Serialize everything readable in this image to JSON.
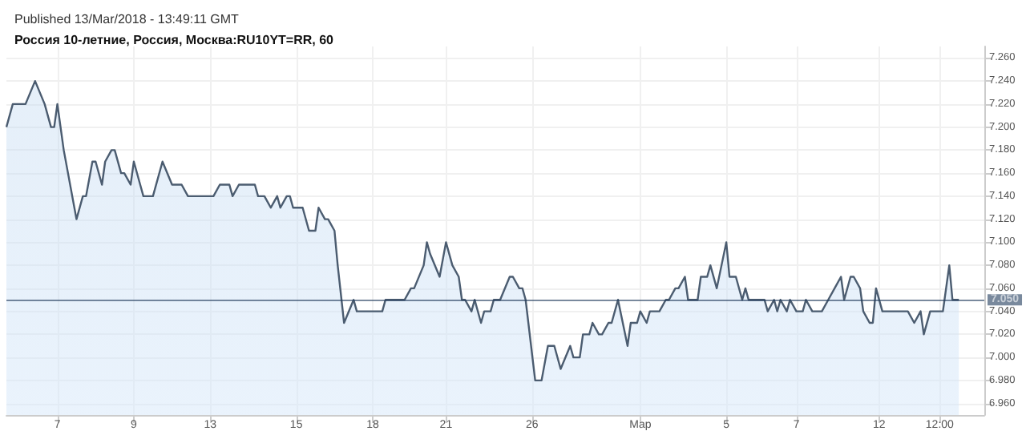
{
  "chart_data": {
    "type": "area",
    "title": "Россия 10-летние, Россия, Москва:RU10YT=RR, 60",
    "annotations": [
      "Published 13/Mar/2018 - 13:49:11 GMT"
    ],
    "categories": [
      null,
      null,
      null,
      null,
      null,
      null,
      null,
      null,
      null,
      null,
      null,
      null,
      null,
      null,
      null,
      null,
      "7",
      null,
      null,
      null,
      null,
      null,
      null,
      null,
      null,
      null,
      null,
      null,
      null,
      null,
      null,
      null,
      null,
      null,
      null,
      null,
      null,
      null,
      null,
      null,
      "9",
      null,
      null,
      null,
      null,
      null,
      null,
      null,
      null,
      null,
      null,
      null,
      null,
      null,
      null,
      null,
      null,
      null,
      null,
      null,
      null,
      null,
      null,
      null,
      "13",
      null,
      null,
      null,
      null,
      null,
      null,
      null,
      null,
      null,
      null,
      null,
      null,
      null,
      null,
      null,
      null,
      null,
      null,
      null,
      null,
      null,
      null,
      null,
      null,
      null,
      null,
      "15",
      null,
      null,
      null,
      null,
      null,
      null,
      null,
      null,
      null,
      null,
      null,
      null,
      null,
      null,
      null,
      null,
      null,
      null,
      null,
      null,
      null,
      null,
      null,
      "18",
      null,
      null,
      null,
      null,
      null,
      null,
      null,
      null,
      null,
      null,
      null,
      null,
      null,
      null,
      null,
      null,
      null,
      null,
      null,
      null,
      null,
      null,
      "21",
      null,
      null,
      null,
      null,
      null,
      null,
      null,
      null,
      null,
      null,
      null,
      null,
      null,
      null,
      null,
      null,
      null,
      null,
      null,
      null,
      null,
      null,
      null,
      null,
      null,
      null,
      "26",
      null,
      null,
      null,
      null,
      null,
      null,
      null,
      null,
      null,
      null,
      null,
      null,
      null,
      null,
      null,
      null,
      null,
      null,
      null,
      null,
      null,
      null,
      null,
      null,
      null,
      null,
      null,
      null,
      null,
      null,
      null,
      null,
      null,
      "Мар",
      null,
      null,
      null,
      null,
      null,
      null,
      null,
      null,
      null,
      null,
      null,
      null,
      null,
      null,
      null,
      null,
      null,
      null,
      null,
      null,
      null,
      null,
      null,
      null,
      null,
      null,
      "5",
      null,
      null,
      null,
      null,
      null,
      null,
      null,
      null,
      null,
      null,
      null,
      null,
      null,
      null,
      null,
      null,
      null,
      null,
      null,
      null,
      null,
      "7",
      null,
      null,
      null,
      null,
      null,
      null,
      null,
      null,
      null,
      null,
      null,
      null,
      null,
      null,
      null,
      null,
      null,
      null,
      null,
      null,
      null,
      null,
      null,
      null,
      null,
      "12",
      null,
      null,
      null,
      null,
      null,
      null,
      null,
      null,
      null,
      null,
      null,
      null,
      null,
      null,
      null,
      null,
      null,
      null,
      "12:00",
      null,
      null,
      null,
      null,
      null,
      null,
      null,
      null,
      null,
      null,
      null,
      null,
      null,
      null
    ],
    "series": [
      {
        "color": "#4b5c70",
        "values": [
          7.2,
          null,
          7.22,
          null,
          null,
          null,
          7.22,
          null,
          null,
          7.24,
          null,
          null,
          7.22,
          null,
          7.2,
          7.2,
          7.22,
          null,
          7.18,
          null,
          null,
          null,
          7.12,
          null,
          7.14,
          7.14,
          null,
          7.17,
          7.17,
          null,
          7.15,
          7.17,
          null,
          7.18,
          7.18,
          null,
          7.16,
          7.16,
          null,
          7.15,
          7.17,
          null,
          7.15,
          7.14,
          null,
          null,
          7.14,
          null,
          null,
          7.17,
          null,
          null,
          7.15,
          null,
          null,
          7.15,
          null,
          7.14,
          null,
          null,
          null,
          null,
          null,
          null,
          null,
          7.14,
          null,
          7.15,
          null,
          null,
          7.15,
          7.14,
          null,
          7.15,
          null,
          null,
          null,
          null,
          7.15,
          7.14,
          null,
          7.14,
          null,
          7.13,
          null,
          7.14,
          7.13,
          null,
          7.14,
          7.14,
          7.13,
          null,
          null,
          7.13,
          null,
          7.11,
          null,
          7.11,
          7.13,
          null,
          7.12,
          7.12,
          null,
          7.11,
          7.08,
          null,
          7.03,
          null,
          null,
          7.05,
          7.04,
          null,
          null,
          null,
          null,
          null,
          null,
          null,
          7.04,
          7.05,
          null,
          null,
          null,
          null,
          null,
          7.05,
          null,
          7.06,
          7.06,
          null,
          null,
          7.08,
          7.1,
          7.09,
          null,
          null,
          7.07,
          null,
          7.1,
          null,
          7.08,
          null,
          7.07,
          7.05,
          7.05,
          null,
          7.04,
          7.05,
          null,
          7.03,
          7.04,
          null,
          7.04,
          7.05,
          null,
          7.05,
          null,
          null,
          7.07,
          7.07,
          null,
          7.06,
          7.06,
          7.05,
          null,
          null,
          6.98,
          null,
          6.98,
          null,
          7.01,
          null,
          7.01,
          null,
          6.99,
          null,
          null,
          7.01,
          7.0,
          null,
          7.0,
          7.02,
          null,
          7.02,
          7.03,
          null,
          7.02,
          7.02,
          null,
          7.03,
          7.03,
          null,
          7.05,
          null,
          null,
          7.01,
          7.03,
          null,
          7.03,
          7.04,
          null,
          7.03,
          7.04,
          null,
          null,
          7.04,
          null,
          7.05,
          7.05,
          null,
          7.06,
          7.06,
          null,
          7.07,
          7.05,
          null,
          null,
          7.05,
          7.07,
          null,
          7.07,
          7.08,
          null,
          7.06,
          null,
          null,
          7.1,
          7.07,
          null,
          7.07,
          null,
          7.05,
          7.06,
          7.05,
          null,
          null,
          null,
          null,
          7.05,
          7.04,
          null,
          7.05,
          7.04,
          7.05,
          null,
          7.04,
          7.05,
          null,
          7.04,
          null,
          7.04,
          7.05,
          null,
          7.04,
          null,
          null,
          7.04,
          null,
          7.05,
          null,
          7.06,
          null,
          7.07,
          7.05,
          null,
          7.07,
          7.07,
          null,
          7.06,
          7.04,
          null,
          7.03,
          7.03,
          7.06,
          null,
          7.04,
          null,
          null,
          null,
          null,
          null,
          null,
          null,
          7.04,
          null,
          7.03,
          null,
          7.04,
          7.02,
          null,
          7.04,
          null,
          null,
          null,
          7.04,
          null,
          7.08,
          7.05,
          null,
          7.05,
          null,
          null,
          null,
          null,
          null,
          null,
          null,
          null
        ]
      }
    ],
    "ylim": [
      6.95,
      7.27
    ],
    "yticks": [
      {
        "value": 6.96,
        "label": "6.960"
      },
      {
        "value": 6.98,
        "label": "6.980"
      },
      {
        "value": 7.0,
        "label": "7.000"
      },
      {
        "value": 7.02,
        "label": "7.020"
      },
      {
        "value": 7.04,
        "label": "7.040"
      },
      {
        "value": 7.06,
        "label": "7.060"
      },
      {
        "value": 7.08,
        "label": "7.080"
      },
      {
        "value": 7.1,
        "label": "7.100"
      },
      {
        "value": 7.12,
        "label": "7.120"
      },
      {
        "value": 7.14,
        "label": "7.140"
      },
      {
        "value": 7.16,
        "label": "7.160"
      },
      {
        "value": 7.18,
        "label": "7.180"
      },
      {
        "value": 7.2,
        "label": "7.200"
      },
      {
        "value": 7.22,
        "label": "7.220"
      },
      {
        "value": 7.24,
        "label": "7.240"
      },
      {
        "value": 7.26,
        "label": "7.260"
      }
    ],
    "ref_lines": [
      {
        "axis": "y",
        "value": 7.05,
        "label": "7.050",
        "color": "#1f3b5c"
      }
    ],
    "grid": true,
    "marker": "none",
    "line_style": "solid"
  }
}
